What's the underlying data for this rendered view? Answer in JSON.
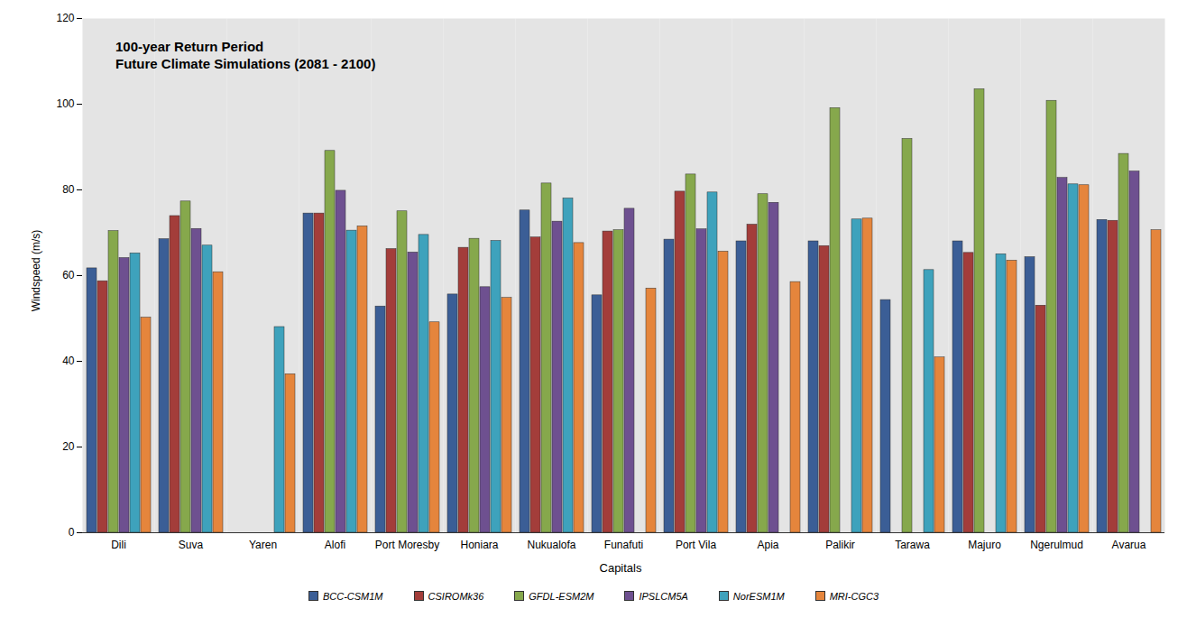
{
  "chart_data": {
    "type": "bar",
    "title": "100-year Return Period",
    "subtitle": "Future Climate Simulations (2081 - 2100)",
    "x_label": "Capitals",
    "y_label": "Windspeed (m/s)",
    "categories": [
      "Dili",
      "Suva",
      "Yaren",
      "Alofi",
      "Port Moresby",
      "Honiara",
      "Nukualofa",
      "Funafuti",
      "Port Vila",
      "Apia",
      "Palikir",
      "Tarawa",
      "Majuro",
      "Ngerulmud",
      "Avarua"
    ],
    "series": [
      {
        "name": "BCC-CSM1M",
        "color": "#3b5e96",
        "values": [
          61.7,
          68.5,
          null,
          74.5,
          52.8,
          55.6,
          75.2,
          55.4,
          68.4,
          68.0,
          68.0,
          54.3,
          68.0,
          64.3,
          73.0
        ]
      },
      {
        "name": "CSIROMk36",
        "color": "#a33d3a",
        "values": [
          58.7,
          73.9,
          null,
          74.5,
          66.2,
          66.5,
          68.9,
          70.3,
          79.6,
          71.9,
          66.9,
          null,
          65.3,
          53.0,
          72.8
        ]
      },
      {
        "name": "GFDL-ESM2M",
        "color": "#86a84c",
        "values": [
          70.4,
          77.3,
          null,
          89.1,
          75.0,
          68.6,
          81.5,
          70.6,
          83.6,
          79.0,
          99.1,
          91.9,
          103.5,
          100.8,
          88.4
        ]
      },
      {
        "name": "IPSLCM5A",
        "color": "#6e5090",
        "values": [
          64.1,
          70.9,
          null,
          79.8,
          65.4,
          57.3,
          72.6,
          75.6,
          70.8,
          77.0,
          null,
          null,
          null,
          82.8,
          84.3
        ]
      },
      {
        "name": "NorESM1M",
        "color": "#3ea2bc",
        "values": [
          65.2,
          67.0,
          48.0,
          70.5,
          69.5,
          68.1,
          78.0,
          null,
          79.4,
          null,
          73.1,
          61.3,
          65.0,
          81.3,
          null
        ]
      },
      {
        "name": "MRI-CGC3",
        "color": "#e5853c",
        "values": [
          50.2,
          60.8,
          37.0,
          71.5,
          49.1,
          54.8,
          67.6,
          57.0,
          65.6,
          58.5,
          73.3,
          40.9,
          63.5,
          81.1,
          70.6
        ]
      }
    ],
    "ylim": [
      0,
      120
    ],
    "yticks": [
      0,
      20,
      40,
      60,
      80,
      100,
      120
    ],
    "grid": false,
    "legend": "bottom"
  }
}
